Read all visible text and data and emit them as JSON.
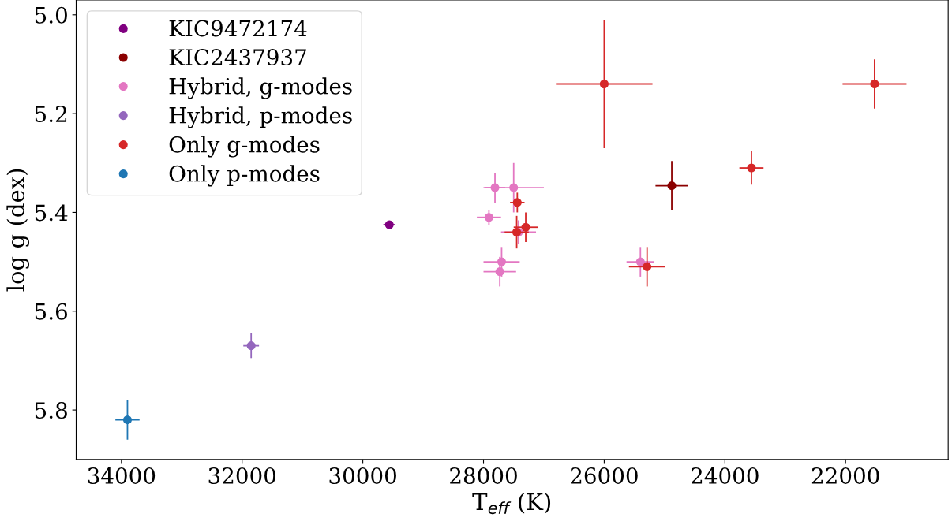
{
  "chart_data": {
    "type": "scatter",
    "xlabel": "T$_{eff}$ (K)",
    "ylabel": "log g (dex)",
    "xlim": [
      34750,
      20300
    ],
    "xticks": [
      34000,
      32000,
      30000,
      28000,
      26000,
      24000,
      22000
    ],
    "ylim": [
      5.9,
      4.97
    ],
    "yticks": [
      {
        "value": 5.0,
        "label": "5.0"
      },
      {
        "value": 5.2,
        "label": "5.2"
      },
      {
        "value": 5.4,
        "label": "5.4"
      },
      {
        "value": 5.6,
        "label": "5.6"
      },
      {
        "value": 5.8,
        "label": "5.8"
      }
    ],
    "grid": false,
    "legend": "top left",
    "marker": "circle",
    "series": [
      {
        "name": "KIC9472174",
        "color": "#800080",
        "x": [
          29560
        ],
        "values": [
          5.425
        ],
        "xerrors": [
          100
        ],
        "errors": [
          0.005
        ]
      },
      {
        "name": "KIC2437937",
        "color": "#8b0000",
        "x": [
          24880
        ],
        "values": [
          5.346
        ],
        "xerrors": [
          270
        ],
        "errors": [
          0.05
        ]
      },
      {
        "name": "Hybrid, g-modes",
        "color": "#e377c2",
        "x": [
          27810,
          27500,
          27910,
          27420,
          27700,
          27730,
          25400
        ],
        "values": [
          5.35,
          5.35,
          5.41,
          5.44,
          5.5,
          5.52,
          5.5
        ],
        "xerrors": [
          170,
          500,
          200,
          290,
          300,
          270,
          230
        ],
        "errors": [
          0.03,
          0.05,
          0.015,
          0.024,
          0.03,
          0.03,
          0.03
        ]
      },
      {
        "name": "Hybrid, p-modes",
        "color": "#9467bd",
        "x": [
          31850
        ],
        "values": [
          5.67
        ],
        "xerrors": [
          130
        ],
        "errors": [
          0.025
        ]
      },
      {
        "name": "Only g-modes",
        "color": "#d62728",
        "x": [
          26000,
          23560,
          21520,
          27440,
          27450,
          27300,
          25290
        ],
        "values": [
          5.14,
          5.31,
          5.14,
          5.38,
          5.44,
          5.43,
          5.51
        ],
        "xerrors": [
          800,
          200,
          530,
          120,
          200,
          200,
          300
        ],
        "errors": [
          0.13,
          0.034,
          0.05,
          0.02,
          0.033,
          0.03,
          0.04
        ]
      },
      {
        "name": "Only p-modes",
        "color": "#1f77b4",
        "x": [
          33900
        ],
        "values": [
          5.82
        ],
        "xerrors": [
          200
        ],
        "errors": [
          0.04
        ]
      }
    ]
  }
}
